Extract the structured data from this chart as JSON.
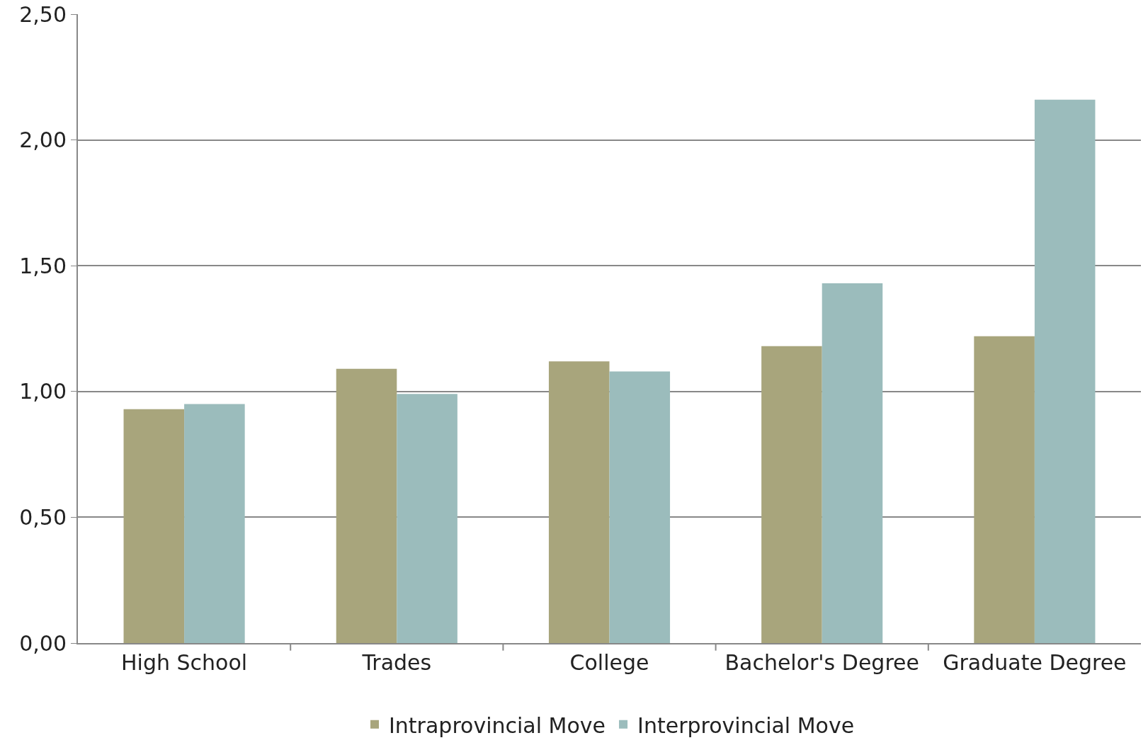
{
  "chart_data": {
    "type": "bar",
    "categories": [
      "High School",
      "Trades",
      "College",
      "Bachelor's Degree",
      "Graduate Degree"
    ],
    "series": [
      {
        "name": "Intraprovincial Move",
        "color": "#a8a57c",
        "values": [
          0.93,
          1.09,
          1.12,
          1.18,
          1.22
        ]
      },
      {
        "name": "Interprovincial Move",
        "color": "#9bbcbc",
        "values": [
          0.95,
          0.99,
          1.08,
          1.43,
          2.16
        ]
      }
    ],
    "ylim": [
      0,
      2.5
    ],
    "yticks": [
      {
        "value": 0,
        "label": "0,00"
      },
      {
        "value": 0.5,
        "label": "0,50"
      },
      {
        "value": 1,
        "label": "1,00"
      },
      {
        "value": 1.5,
        "label": "1,50"
      },
      {
        "value": 2,
        "label": "2,00"
      },
      {
        "value": 2.5,
        "label": "2,50"
      }
    ],
    "grid": "y",
    "legend": "bottom"
  }
}
